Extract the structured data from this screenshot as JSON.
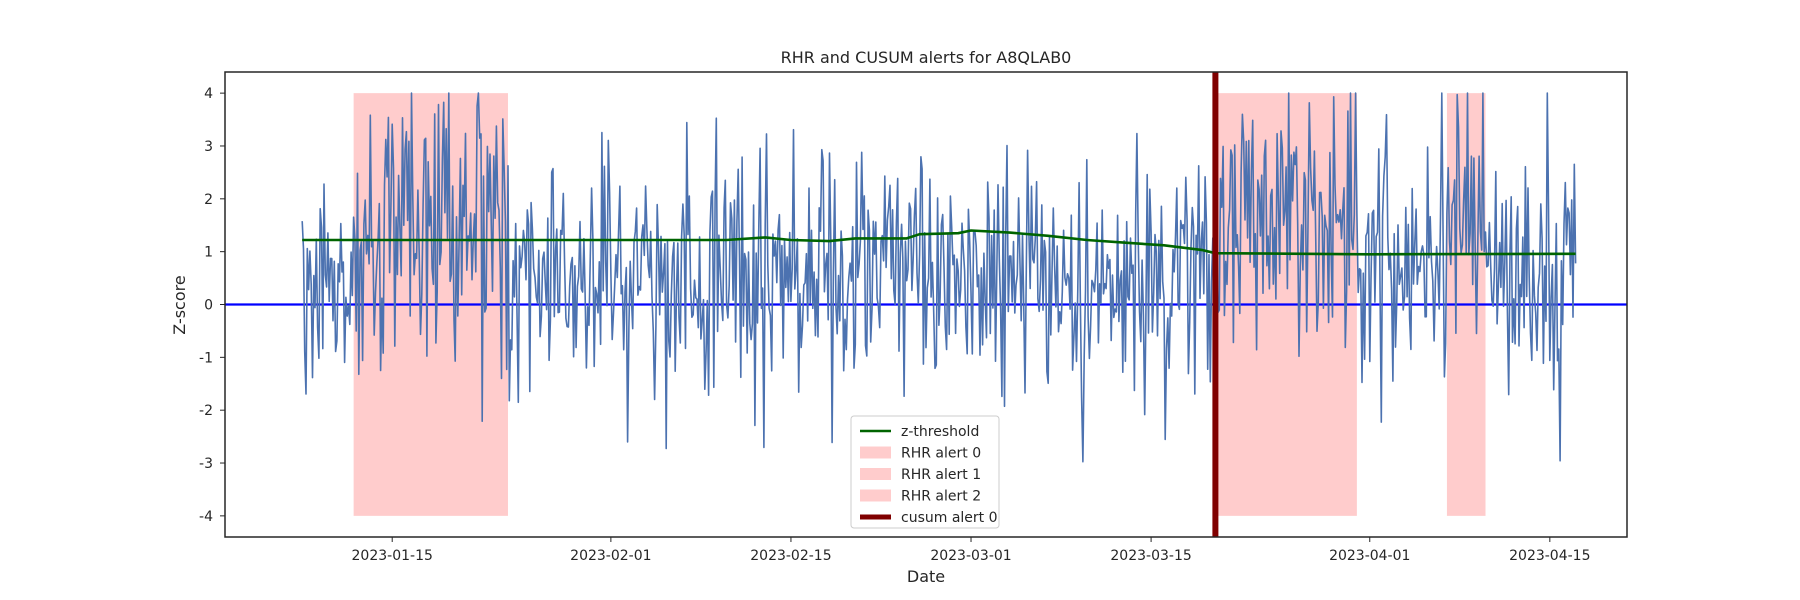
{
  "chart_data": {
    "type": "line",
    "title": "RHR and CUSUM alerts for A8QLAB0",
    "xlabel": "Date",
    "ylabel": "Z-score",
    "xlim": [
      "2023-01-02",
      "2023-04-21"
    ],
    "ylim": [
      -4.4,
      4.4
    ],
    "grid": false,
    "legend_position": "lower-center",
    "x_ticks": [
      "2023-01-15",
      "2023-02-01",
      "2023-02-15",
      "2023-03-01",
      "2023-03-15",
      "2023-04-01",
      "2023-04-15"
    ],
    "y_ticks": [
      -4,
      -3,
      -2,
      -1,
      0,
      1,
      2,
      3,
      4
    ],
    "zero_line": {
      "y": 0,
      "color": "#0000ff"
    },
    "series": [
      {
        "name": "z-threshold",
        "color": "#006400",
        "points": [
          [
            "2023-01-08",
            1.22
          ],
          [
            "2023-01-20",
            1.22
          ],
          [
            "2023-02-01",
            1.22
          ],
          [
            "2023-02-10",
            1.22
          ],
          [
            "2023-02-13",
            1.27
          ],
          [
            "2023-02-15",
            1.22
          ],
          [
            "2023-02-18",
            1.2
          ],
          [
            "2023-02-20",
            1.25
          ],
          [
            "2023-02-24",
            1.25
          ],
          [
            "2023-02-25",
            1.33
          ],
          [
            "2023-02-28",
            1.35
          ],
          [
            "2023-03-01",
            1.4
          ],
          [
            "2023-03-04",
            1.36
          ],
          [
            "2023-03-07",
            1.3
          ],
          [
            "2023-03-10",
            1.22
          ],
          [
            "2023-03-13",
            1.17
          ],
          [
            "2023-03-16",
            1.12
          ],
          [
            "2023-03-19",
            1.03
          ],
          [
            "2023-03-20",
            0.97
          ],
          [
            "2023-04-01",
            0.95
          ],
          [
            "2023-04-17",
            0.96
          ]
        ]
      },
      {
        "name": "",
        "color": "#4c72b0",
        "x_start": "2023-01-08",
        "x_end": "2023-04-17",
        "points_per_day": 10,
        "value_range": [
          -4,
          4
        ]
      }
    ],
    "alerts": [
      {
        "name": "RHR alert 0",
        "start": "2023-01-12",
        "end": "2023-01-24",
        "ymin": -4,
        "ymax": 4,
        "color": "#ffcccc"
      },
      {
        "name": "RHR alert 1",
        "start": "2023-03-20",
        "end": "2023-03-31",
        "ymin": -4,
        "ymax": 4,
        "color": "#ffcccc"
      },
      {
        "name": "RHR alert 2",
        "start": "2023-04-07",
        "end": "2023-04-10",
        "ymin": -4,
        "ymax": 4,
        "color": "#ffcccc"
      }
    ],
    "cusum_alerts": [
      {
        "name": "cusum alert 0",
        "date": "2023-03-20",
        "color": "#800000"
      }
    ]
  }
}
